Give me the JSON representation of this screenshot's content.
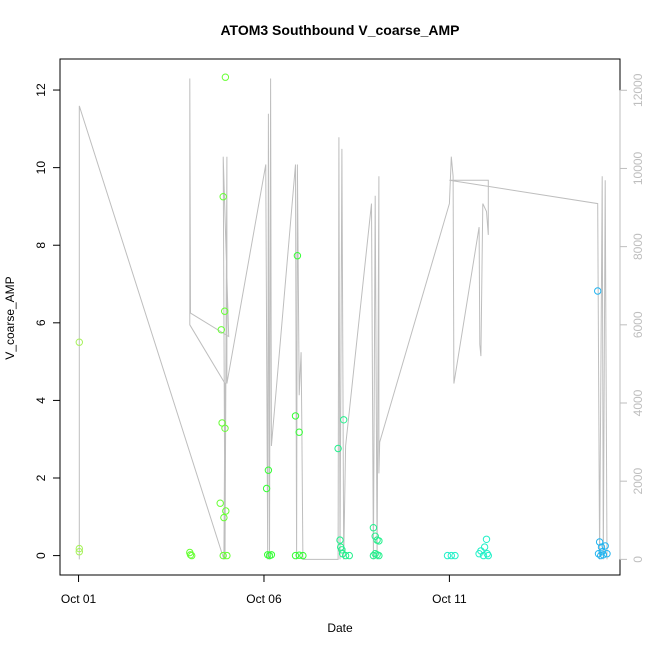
{
  "chart_data": {
    "type": "scatter",
    "title": "ATOM3 Southbound V_coarse_AMP",
    "xlabel": "Date",
    "ylabel": "V_coarse_AMP",
    "x_ticks": [
      "Oct 01",
      "Oct 06",
      "Oct 11"
    ],
    "x_tick_days": [
      1,
      6,
      11
    ],
    "xlim": [
      0.5,
      15.6
    ],
    "ylim": [
      -0.5,
      12.8
    ],
    "y_ticks": [
      0,
      2,
      4,
      6,
      8,
      10,
      12
    ],
    "y2lim": [
      -400,
      12800
    ],
    "y2_ticks": [
      0,
      2000,
      4000,
      6000,
      8000,
      10000,
      12000
    ],
    "grid": false,
    "legend": "none",
    "colors": {
      "line": "#bebebe",
      "point_ramp": [
        "#a6f25a",
        "#66ff33",
        "#33ff33",
        "#22f08c",
        "#22f0c8",
        "#22e6f0",
        "#22b4f0"
      ]
    },
    "points": [
      {
        "x": 1.02,
        "y": 5.5,
        "c": 0
      },
      {
        "x": 1.02,
        "y": 0.18,
        "c": 0
      },
      {
        "x": 1.02,
        "y": 0.1,
        "c": 0
      },
      {
        "x": 4.0,
        "y": 0.08,
        "c": 1
      },
      {
        "x": 4.02,
        "y": 0.02,
        "c": 1
      },
      {
        "x": 4.05,
        "y": 0.0,
        "c": 1
      },
      {
        "x": 4.82,
        "y": 1.35,
        "c": 1
      },
      {
        "x": 4.85,
        "y": 5.82,
        "c": 1
      },
      {
        "x": 4.87,
        "y": 3.42,
        "c": 1
      },
      {
        "x": 4.9,
        "y": 9.25,
        "c": 1
      },
      {
        "x": 4.92,
        "y": 0.98,
        "c": 1
      },
      {
        "x": 4.94,
        "y": 6.3,
        "c": 1
      },
      {
        "x": 4.95,
        "y": 3.28,
        "c": 1
      },
      {
        "x": 4.97,
        "y": 1.15,
        "c": 1
      },
      {
        "x": 4.96,
        "y": 12.33,
        "c": 1
      },
      {
        "x": 4.9,
        "y": 0.0,
        "c": 1
      },
      {
        "x": 5.0,
        "y": 0.0,
        "c": 1
      },
      {
        "x": 6.07,
        "y": 1.73,
        "c": 2
      },
      {
        "x": 6.12,
        "y": 2.2,
        "c": 2
      },
      {
        "x": 6.1,
        "y": 0.02,
        "c": 2
      },
      {
        "x": 6.15,
        "y": 0.0,
        "c": 2
      },
      {
        "x": 6.2,
        "y": 0.02,
        "c": 2
      },
      {
        "x": 6.85,
        "y": 3.6,
        "c": 2
      },
      {
        "x": 6.9,
        "y": 7.73,
        "c": 2
      },
      {
        "x": 6.95,
        "y": 3.18,
        "c": 2
      },
      {
        "x": 6.85,
        "y": 0.0,
        "c": 2
      },
      {
        "x": 6.95,
        "y": 0.01,
        "c": 2
      },
      {
        "x": 7.05,
        "y": 0.0,
        "c": 2
      },
      {
        "x": 8.0,
        "y": 2.76,
        "c": 3
      },
      {
        "x": 8.05,
        "y": 0.4,
        "c": 3
      },
      {
        "x": 8.07,
        "y": 0.22,
        "c": 3
      },
      {
        "x": 8.1,
        "y": 0.15,
        "c": 3
      },
      {
        "x": 8.12,
        "y": 0.05,
        "c": 3
      },
      {
        "x": 8.15,
        "y": 3.5,
        "c": 3
      },
      {
        "x": 8.2,
        "y": 0.0,
        "c": 3
      },
      {
        "x": 8.3,
        "y": 0.0,
        "c": 3
      },
      {
        "x": 8.95,
        "y": 0.72,
        "c": 3
      },
      {
        "x": 9.0,
        "y": 0.5,
        "c": 3
      },
      {
        "x": 9.05,
        "y": 0.4,
        "c": 3
      },
      {
        "x": 9.1,
        "y": 0.38,
        "c": 3
      },
      {
        "x": 9.0,
        "y": 0.05,
        "c": 3
      },
      {
        "x": 9.05,
        "y": 0.02,
        "c": 3
      },
      {
        "x": 9.1,
        "y": 0.0,
        "c": 3
      },
      {
        "x": 8.95,
        "y": 0.0,
        "c": 3
      },
      {
        "x": 10.95,
        "y": 0.0,
        "c": 4
      },
      {
        "x": 11.05,
        "y": 0.0,
        "c": 4
      },
      {
        "x": 11.15,
        "y": 0.0,
        "c": 4
      },
      {
        "x": 11.8,
        "y": 0.05,
        "c": 4
      },
      {
        "x": 11.85,
        "y": 0.12,
        "c": 4
      },
      {
        "x": 11.92,
        "y": 0.0,
        "c": 4
      },
      {
        "x": 11.95,
        "y": 0.22,
        "c": 4
      },
      {
        "x": 12.0,
        "y": 0.42,
        "c": 4
      },
      {
        "x": 12.02,
        "y": 0.05,
        "c": 4
      },
      {
        "x": 12.05,
        "y": 0.0,
        "c": 4
      },
      {
        "x": 15.0,
        "y": 6.82,
        "c": 6
      },
      {
        "x": 15.05,
        "y": 0.35,
        "c": 6
      },
      {
        "x": 15.1,
        "y": 0.22,
        "c": 6
      },
      {
        "x": 15.12,
        "y": 0.1,
        "c": 6
      },
      {
        "x": 15.15,
        "y": 0.02,
        "c": 6
      },
      {
        "x": 15.2,
        "y": 0.25,
        "c": 6
      },
      {
        "x": 15.02,
        "y": 0.05,
        "c": 6
      },
      {
        "x": 15.08,
        "y": 0.0,
        "c": 6
      },
      {
        "x": 15.25,
        "y": 0.05,
        "c": 6
      }
    ],
    "line_y2": [
      [
        1.02,
        0
      ],
      [
        1.02,
        11600
      ],
      [
        4.92,
        0
      ],
      [
        4.95,
        4500
      ],
      [
        4.0,
        6000
      ],
      [
        4.0,
        12300
      ],
      [
        4.02,
        6300
      ],
      [
        5.05,
        5700
      ],
      [
        4.9,
        10300
      ],
      [
        4.95,
        0
      ],
      [
        5.0,
        10300
      ],
      [
        5.0,
        4500
      ],
      [
        6.05,
        10100
      ],
      [
        6.05,
        9800
      ],
      [
        6.1,
        0
      ],
      [
        6.12,
        11400
      ],
      [
        6.15,
        0
      ],
      [
        6.18,
        12300
      ],
      [
        6.2,
        2900
      ],
      [
        6.85,
        10100
      ],
      [
        6.88,
        0
      ],
      [
        6.9,
        10100
      ],
      [
        6.95,
        4200
      ],
      [
        7.0,
        5300
      ],
      [
        7.02,
        3500
      ],
      [
        7.05,
        0
      ],
      [
        7.1,
        0
      ],
      [
        8.0,
        0
      ],
      [
        8.02,
        10800
      ],
      [
        8.05,
        0
      ],
      [
        8.1,
        10500
      ],
      [
        8.15,
        0
      ],
      [
        8.2,
        2900
      ],
      [
        8.9,
        9100
      ],
      [
        8.95,
        0
      ],
      [
        9.0,
        9300
      ],
      [
        9.05,
        0
      ],
      [
        9.1,
        9800
      ],
      [
        9.1,
        2200
      ],
      [
        9.12,
        3000
      ],
      [
        11.0,
        9100
      ],
      [
        11.05,
        10300
      ],
      [
        11.1,
        9800
      ],
      [
        11.12,
        4500
      ],
      [
        11.8,
        8500
      ],
      [
        11.82,
        5500
      ],
      [
        11.85,
        5200
      ],
      [
        11.9,
        9100
      ],
      [
        12.0,
        8900
      ],
      [
        12.05,
        8300
      ],
      [
        12.05,
        9700
      ],
      [
        11.0,
        9700
      ],
      [
        15.0,
        9100
      ],
      [
        15.05,
        0
      ],
      [
        15.12,
        9800
      ],
      [
        15.15,
        0
      ],
      [
        15.2,
        9700
      ],
      [
        15.25,
        0
      ]
    ]
  }
}
